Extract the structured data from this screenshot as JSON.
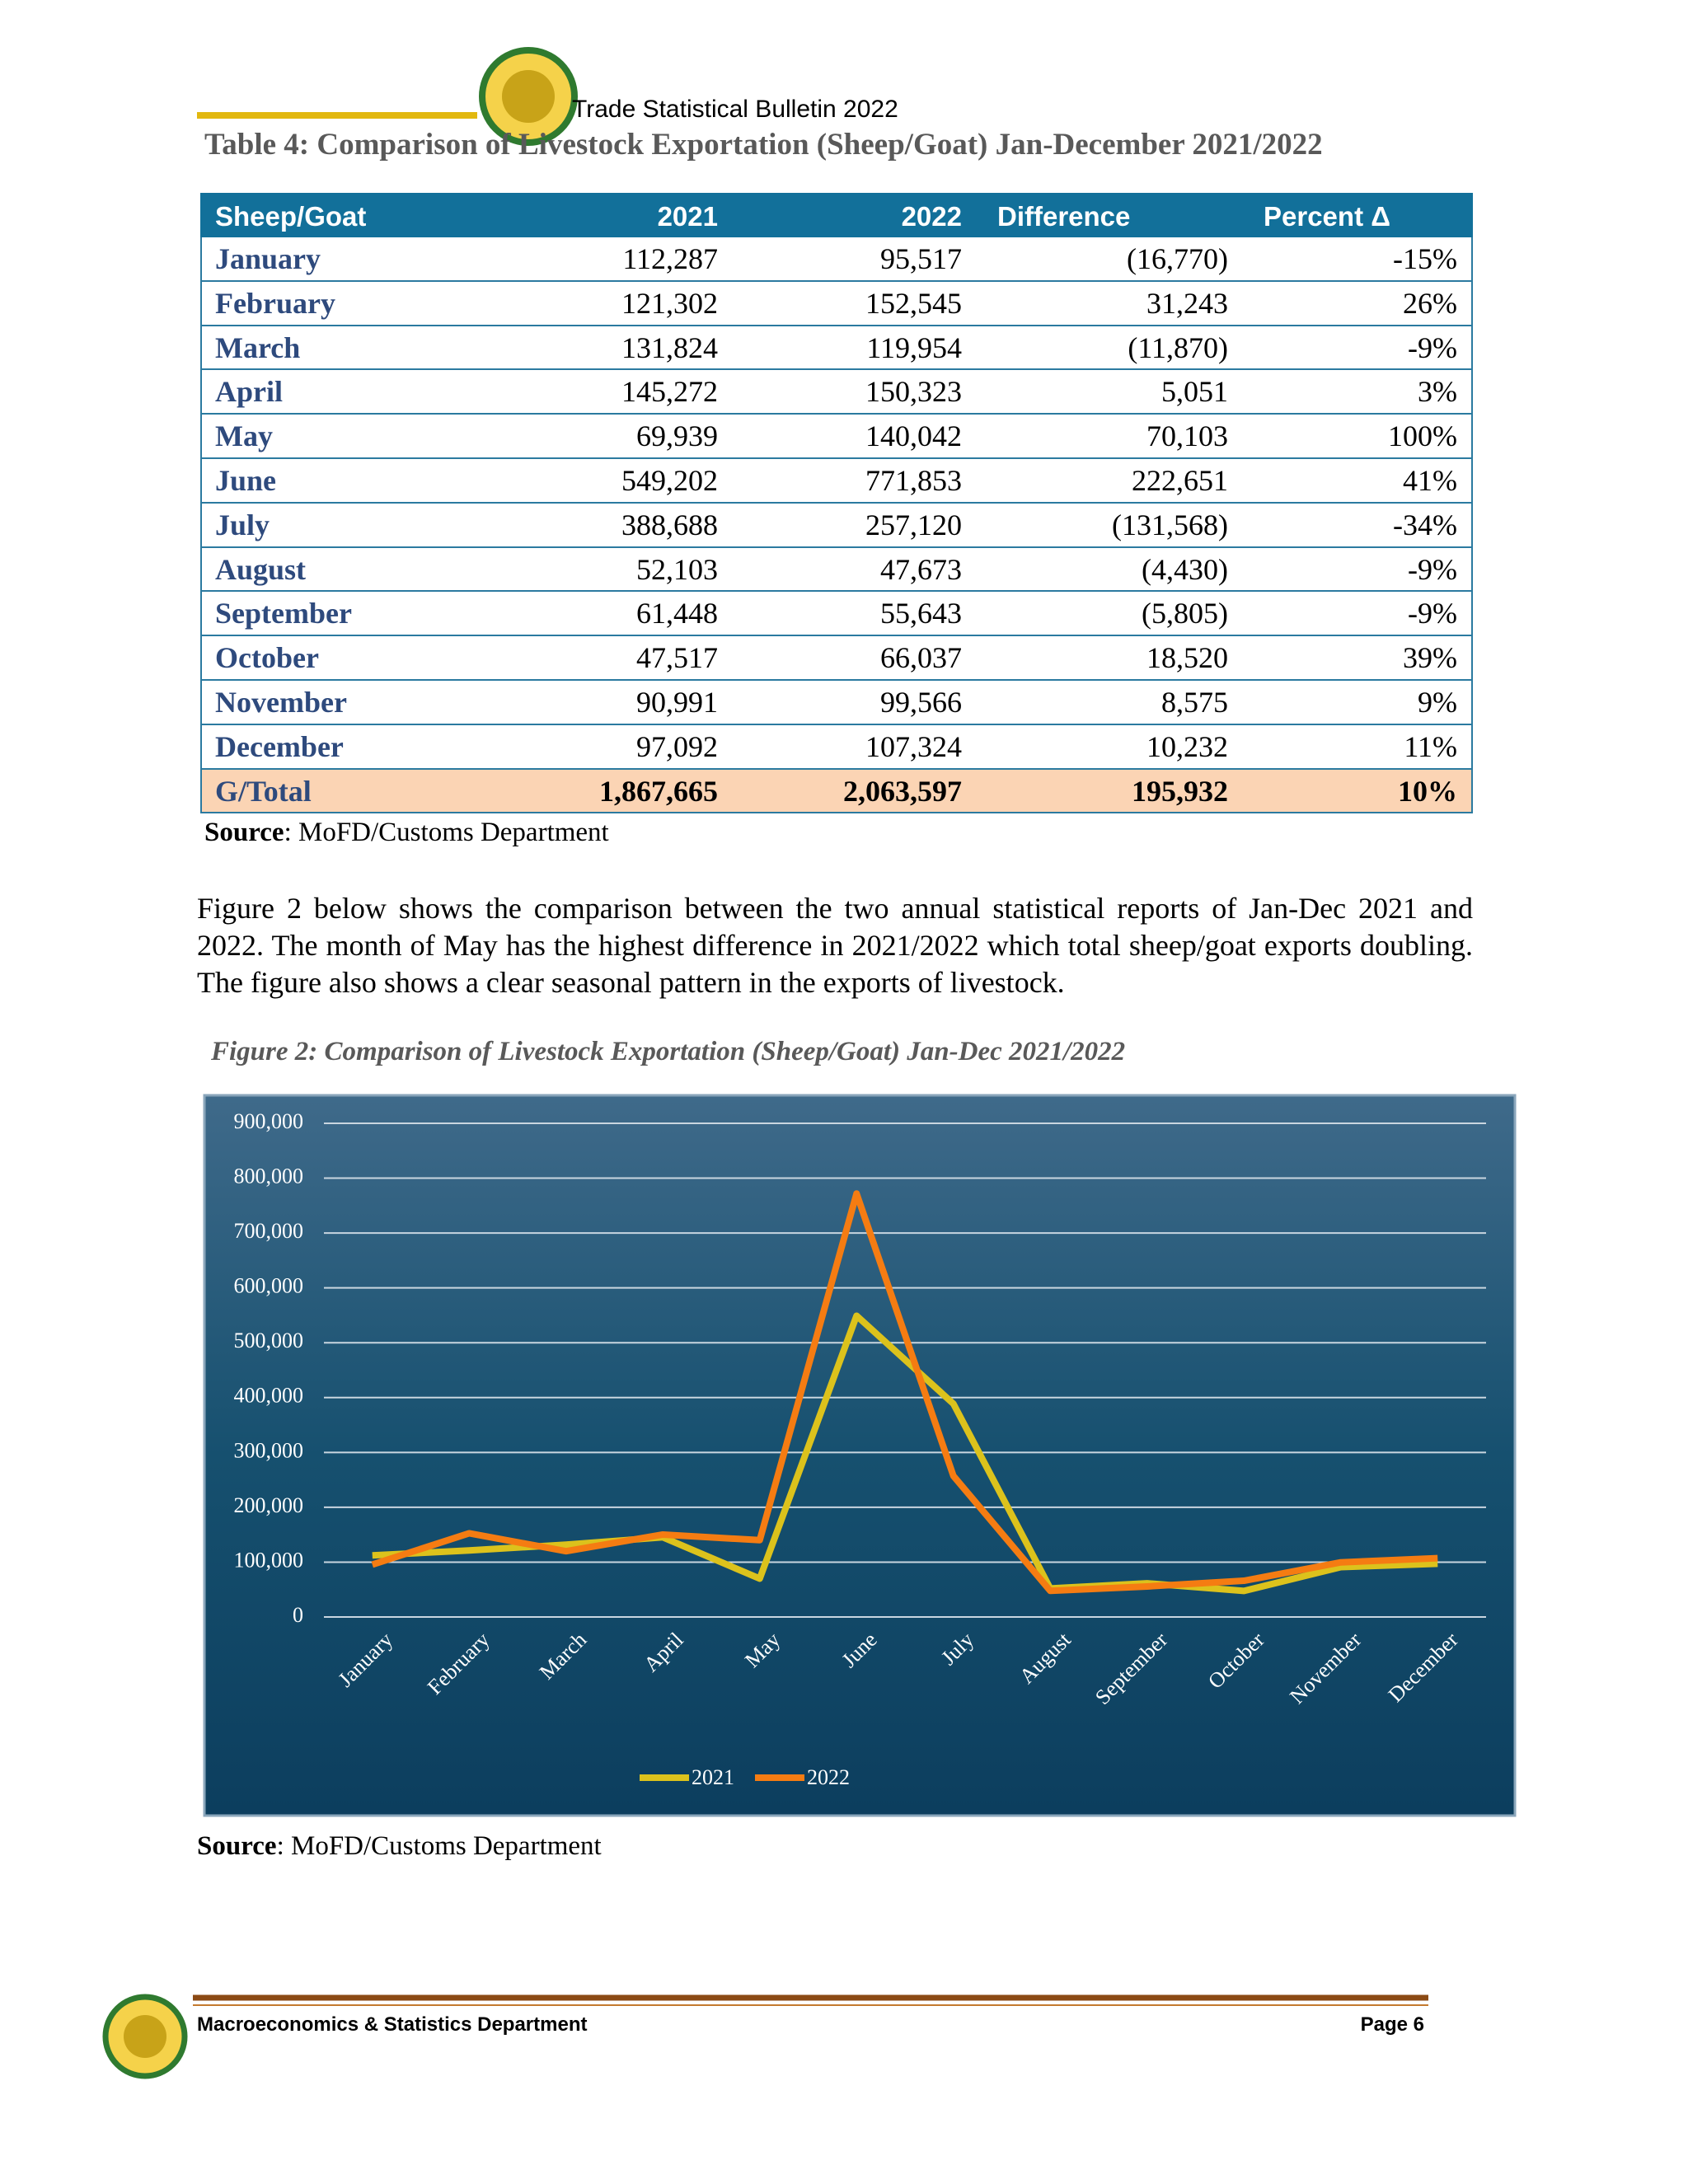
{
  "header": {
    "title": "Trade Statistical Bulletin 2022"
  },
  "table": {
    "title": "Table 4: Comparison of Livestock Exportation (Sheep/Goat) Jan-December 2021/2022",
    "columns": [
      "Sheep/Goat",
      "2021",
      "2022",
      "Difference",
      "Percent Δ"
    ],
    "rows": [
      [
        "January",
        "112,287",
        "95,517",
        "(16,770)",
        "-15%"
      ],
      [
        "February",
        "121,302",
        "152,545",
        "31,243",
        "26%"
      ],
      [
        "March",
        "131,824",
        "119,954",
        "(11,870)",
        "-9%"
      ],
      [
        "April",
        "145,272",
        "150,323",
        "5,051",
        "3%"
      ],
      [
        "May",
        "69,939",
        "140,042",
        "70,103",
        "100%"
      ],
      [
        "June",
        "549,202",
        "771,853",
        "222,651",
        "41%"
      ],
      [
        "July",
        "388,688",
        "257,120",
        "(131,568)",
        "-34%"
      ],
      [
        "August",
        "52,103",
        "47,673",
        "(4,430)",
        "-9%"
      ],
      [
        "September",
        "61,448",
        "55,643",
        "(5,805)",
        "-9%"
      ],
      [
        "October",
        "47,517",
        "66,037",
        "18,520",
        "39%"
      ],
      [
        "November",
        "90,991",
        "99,566",
        "8,575",
        "9%"
      ],
      [
        "December",
        "97,092",
        "107,324",
        "10,232",
        "11%"
      ]
    ],
    "total": [
      "G/Total",
      "1,867,665",
      "2,063,597",
      "195,932",
      "10%"
    ],
    "source_label": "Source",
    "source": ": MoFD/Customs Department"
  },
  "paragraph": "Figure 2 below shows the comparison between the two annual statistical reports of Jan-Dec 2021 and 2022. The month of May has the highest difference in 2021/2022 which total sheep/goat exports doubling. The figure also shows a clear seasonal pattern in the exports of livestock.",
  "figure": {
    "caption": "Figure 2: Comparison of Livestock Exportation (Sheep/Goat) Jan-Dec 2021/2022",
    "source_label": "Source",
    "source": ": MoFD/Customs Department"
  },
  "chart_data": {
    "type": "line",
    "categories": [
      "January",
      "February",
      "March",
      "April",
      "May",
      "June",
      "July",
      "August",
      "September",
      "October",
      "November",
      "December"
    ],
    "series": [
      {
        "name": "2021",
        "color": "#dcc21c",
        "values": [
          112287,
          121302,
          131824,
          145272,
          69939,
          549202,
          388688,
          52103,
          61448,
          47517,
          90991,
          97092
        ]
      },
      {
        "name": "2022",
        "color": "#f57c12",
        "values": [
          95517,
          152545,
          119954,
          150323,
          140042,
          771853,
          257120,
          47673,
          55643,
          66037,
          99566,
          107324
        ]
      }
    ],
    "ylim": [
      0,
      900000
    ],
    "yticks": [
      0,
      {
        "value": 100000,
        "label": "100,000"
      },
      {
        "value": 200000,
        "label": "200,000"
      },
      {
        "value": 300000,
        "label": "300,000"
      },
      {
        "value": 400000,
        "label": "400,000"
      },
      {
        "value": 500000,
        "label": "500,000"
      },
      {
        "value": 600000,
        "label": "600,000"
      },
      {
        "value": 700000,
        "label": "700,000"
      },
      {
        "value": 800000,
        "label": "800,000"
      },
      {
        "value": 900000,
        "label": "900,000"
      }
    ],
    "grid": true,
    "legend": "bottom"
  },
  "footer": {
    "department": "Macroeconomics & Statistics Department",
    "page": "Page 6"
  }
}
